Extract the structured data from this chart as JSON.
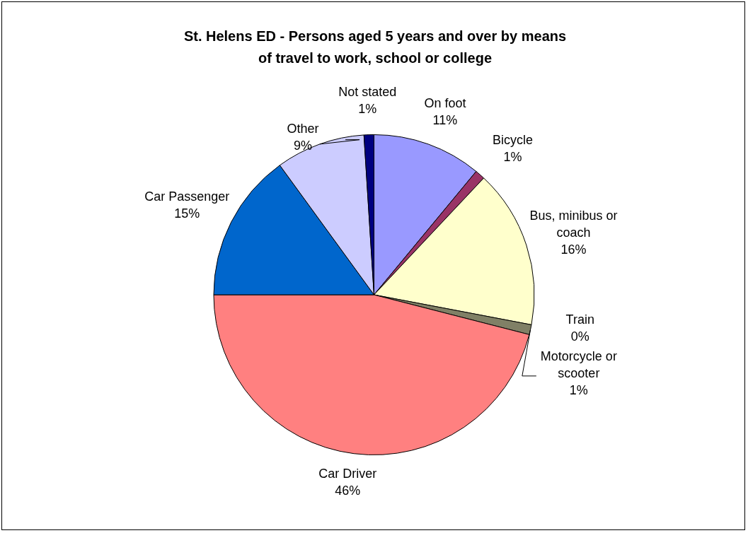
{
  "chart_data": {
    "type": "pie",
    "title": "St. Helens ED - Persons aged 5 years and over by means of travel to work, school or college",
    "categories": [
      "On foot",
      "Bicycle",
      "Bus, minibus or coach",
      "Train",
      "Motorcycle or scooter",
      "Car Driver",
      "Car Passenger",
      "Other",
      "Not stated"
    ],
    "values": [
      11,
      1,
      16,
      0,
      1,
      46,
      15,
      9,
      1
    ],
    "value_labels": [
      "11%",
      "1%",
      "16%",
      "0%",
      "1%",
      "46%",
      "15%",
      "9%",
      "1%"
    ],
    "colors": [
      "#9999ff",
      "#993366",
      "#ffffcc",
      "#ccffcc",
      "#808066",
      "#ff8080",
      "#0066cc",
      "#ccccff",
      "#000080"
    ],
    "legend": false
  }
}
